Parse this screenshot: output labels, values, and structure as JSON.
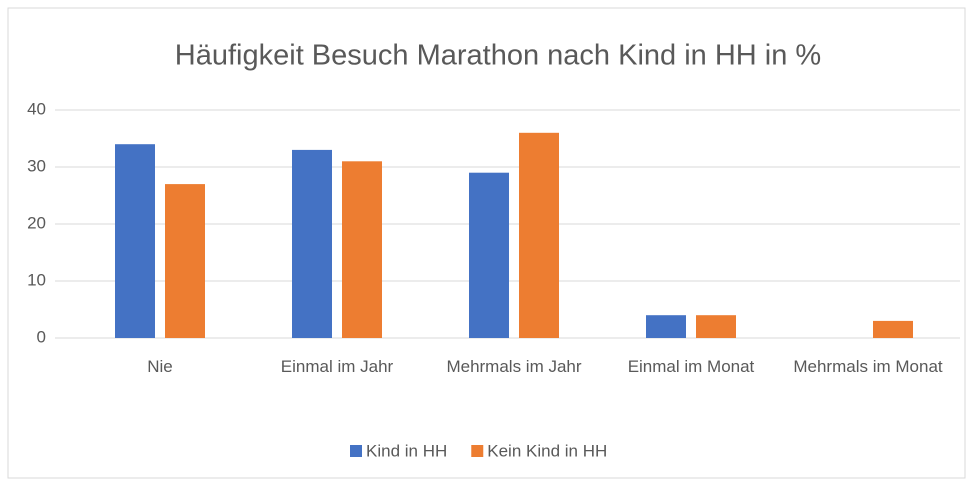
{
  "chart_data": {
    "type": "bar",
    "title": "Häufigkeit Besuch Marathon nach Kind in HH in %",
    "categories": [
      "Nie",
      "Einmal im Jahr",
      "Mehrmals im Jahr",
      "Einmal im Monat",
      "Mehrmals im Monat"
    ],
    "series": [
      {
        "name": "Kind in HH",
        "color": "#4472c4",
        "values": [
          34,
          33,
          29,
          4,
          0
        ]
      },
      {
        "name": "Kein Kind in HH",
        "color": "#ed7d31",
        "values": [
          27,
          31,
          36,
          4,
          3
        ]
      }
    ],
    "ylim": [
      0,
      40
    ],
    "yticks": [
      0,
      10,
      20,
      30,
      40
    ],
    "grid": true,
    "legend": "bottom"
  }
}
